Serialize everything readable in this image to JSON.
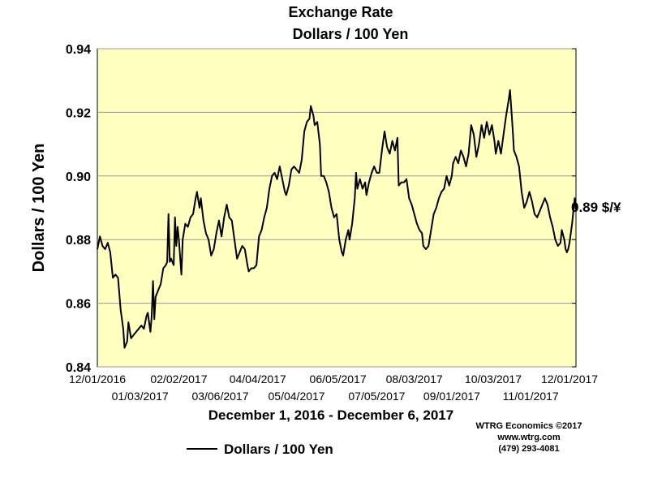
{
  "chart_data": {
    "type": "line",
    "title": "Exchange Rate",
    "subtitle": "Dollars / 100 Yen",
    "ylabel": "Dollars / 100 Yen",
    "xlabel": "December 1, 2016 - December 6, 2017",
    "ylim": [
      0.84,
      0.94
    ],
    "yticks": [
      "0.94",
      "0.92",
      "0.90",
      "0.88",
      "0.86",
      "0.84"
    ],
    "ytick_values": [
      0.94,
      0.92,
      0.9,
      0.88,
      0.86,
      0.84
    ],
    "xlim": [
      "2016-12-01",
      "2017-12-06"
    ],
    "xticks_upper": [
      {
        "date": "2016-12-01",
        "label": "12/01/2016"
      },
      {
        "date": "2017-02-02",
        "label": "02/02/2017"
      },
      {
        "date": "2017-04-04",
        "label": "04/04/2017"
      },
      {
        "date": "2017-06-05",
        "label": "06/05/2017"
      },
      {
        "date": "2017-08-03",
        "label": "08/03/2017"
      },
      {
        "date": "2017-10-03",
        "label": "10/03/2017"
      },
      {
        "date": "2017-12-01",
        "label": "12/01/2017"
      }
    ],
    "xticks_lower": [
      {
        "date": "2017-01-03",
        "label": "01/03/2017"
      },
      {
        "date": "2017-03-06",
        "label": "03/06/2017"
      },
      {
        "date": "2017-05-04",
        "label": "05/04/2017"
      },
      {
        "date": "2017-07-05",
        "label": "07/05/2017"
      },
      {
        "date": "2017-09-01",
        "label": "09/01/2017"
      },
      {
        "date": "2017-11-01",
        "label": "11/01/2017"
      }
    ],
    "grid": "horizontal",
    "background_color": "#ffffc0",
    "line_color": "#000000",
    "series": [
      {
        "name": "Dollars / 100 Yen",
        "points": [
          [
            "2016-12-01",
            0.877
          ],
          [
            "2016-12-02",
            0.879
          ],
          [
            "2016-12-03",
            0.881
          ],
          [
            "2016-12-05",
            0.878
          ],
          [
            "2016-12-07",
            0.877
          ],
          [
            "2016-12-09",
            0.879
          ],
          [
            "2016-12-11",
            0.876
          ],
          [
            "2016-12-13",
            0.868
          ],
          [
            "2016-12-15",
            0.869
          ],
          [
            "2016-12-17",
            0.868
          ],
          [
            "2016-12-19",
            0.858
          ],
          [
            "2016-12-21",
            0.852
          ],
          [
            "2016-12-22",
            0.846
          ],
          [
            "2016-12-24",
            0.848
          ],
          [
            "2016-12-25",
            0.854
          ],
          [
            "2016-12-27",
            0.849
          ],
          [
            "2016-12-29",
            0.85
          ],
          [
            "2016-12-31",
            0.851
          ],
          [
            "2017-01-02",
            0.852
          ],
          [
            "2017-01-04",
            0.853
          ],
          [
            "2017-01-06",
            0.852
          ],
          [
            "2017-01-08",
            0.856
          ],
          [
            "2017-01-09",
            0.857
          ],
          [
            "2017-01-11",
            0.851
          ],
          [
            "2017-01-12",
            0.856
          ],
          [
            "2017-01-13",
            0.867
          ],
          [
            "2017-01-14",
            0.855
          ],
          [
            "2017-01-15",
            0.862
          ],
          [
            "2017-01-17",
            0.864
          ],
          [
            "2017-01-19",
            0.866
          ],
          [
            "2017-01-21",
            0.871
          ],
          [
            "2017-01-23",
            0.872
          ],
          [
            "2017-01-24",
            0.873
          ],
          [
            "2017-01-25",
            0.888
          ],
          [
            "2017-01-26",
            0.873
          ],
          [
            "2017-01-27",
            0.874
          ],
          [
            "2017-01-29",
            0.872
          ],
          [
            "2017-01-30",
            0.887
          ],
          [
            "2017-01-31",
            0.878
          ],
          [
            "2017-02-01",
            0.884
          ],
          [
            "2017-02-02",
            0.88
          ],
          [
            "2017-02-04",
            0.869
          ],
          [
            "2017-02-05",
            0.88
          ],
          [
            "2017-02-07",
            0.885
          ],
          [
            "2017-02-09",
            0.884
          ],
          [
            "2017-02-11",
            0.887
          ],
          [
            "2017-02-13",
            0.888
          ],
          [
            "2017-02-15",
            0.893
          ],
          [
            "2017-02-16",
            0.895
          ],
          [
            "2017-02-18",
            0.89
          ],
          [
            "2017-02-19",
            0.893
          ],
          [
            "2017-02-21",
            0.886
          ],
          [
            "2017-02-23",
            0.882
          ],
          [
            "2017-02-25",
            0.88
          ],
          [
            "2017-02-27",
            0.875
          ],
          [
            "2017-03-01",
            0.877
          ],
          [
            "2017-03-03",
            0.882
          ],
          [
            "2017-03-05",
            0.886
          ],
          [
            "2017-03-07",
            0.881
          ],
          [
            "2017-03-09",
            0.887
          ],
          [
            "2017-03-11",
            0.891
          ],
          [
            "2017-03-13",
            0.887
          ],
          [
            "2017-03-15",
            0.886
          ],
          [
            "2017-03-17",
            0.88
          ],
          [
            "2017-03-19",
            0.874
          ],
          [
            "2017-03-21",
            0.876
          ],
          [
            "2017-03-23",
            0.878
          ],
          [
            "2017-03-25",
            0.877
          ],
          [
            "2017-03-27",
            0.872
          ],
          [
            "2017-03-28",
            0.87
          ],
          [
            "2017-03-30",
            0.871
          ],
          [
            "2017-04-01",
            0.871
          ],
          [
            "2017-04-03",
            0.872
          ],
          [
            "2017-04-05",
            0.881
          ],
          [
            "2017-04-07",
            0.883
          ],
          [
            "2017-04-09",
            0.887
          ],
          [
            "2017-04-11",
            0.89
          ],
          [
            "2017-04-13",
            0.896
          ],
          [
            "2017-04-15",
            0.9
          ],
          [
            "2017-04-17",
            0.901
          ],
          [
            "2017-04-19",
            0.899
          ],
          [
            "2017-04-21",
            0.903
          ],
          [
            "2017-04-23",
            0.899
          ],
          [
            "2017-04-25",
            0.895
          ],
          [
            "2017-04-26",
            0.894
          ],
          [
            "2017-04-28",
            0.897
          ],
          [
            "2017-04-30",
            0.902
          ],
          [
            "2017-05-02",
            0.903
          ],
          [
            "2017-05-04",
            0.902
          ],
          [
            "2017-05-06",
            0.901
          ],
          [
            "2017-05-08",
            0.905
          ],
          [
            "2017-05-10",
            0.914
          ],
          [
            "2017-05-12",
            0.917
          ],
          [
            "2017-05-14",
            0.918
          ],
          [
            "2017-05-15",
            0.922
          ],
          [
            "2017-05-17",
            0.919
          ],
          [
            "2017-05-18",
            0.916
          ],
          [
            "2017-05-20",
            0.917
          ],
          [
            "2017-05-22",
            0.91
          ],
          [
            "2017-05-23",
            0.9
          ],
          [
            "2017-05-25",
            0.9
          ],
          [
            "2017-05-27",
            0.898
          ],
          [
            "2017-05-29",
            0.895
          ],
          [
            "2017-05-31",
            0.89
          ],
          [
            "2017-06-02",
            0.887
          ],
          [
            "2017-06-04",
            0.888
          ],
          [
            "2017-06-06",
            0.88
          ],
          [
            "2017-06-08",
            0.876
          ],
          [
            "2017-06-09",
            0.875
          ],
          [
            "2017-06-11",
            0.88
          ],
          [
            "2017-06-13",
            0.883
          ],
          [
            "2017-06-14",
            0.88
          ],
          [
            "2017-06-16",
            0.885
          ],
          [
            "2017-06-18",
            0.893
          ],
          [
            "2017-06-19",
            0.901
          ],
          [
            "2017-06-20",
            0.896
          ],
          [
            "2017-06-22",
            0.899
          ],
          [
            "2017-06-24",
            0.896
          ],
          [
            "2017-06-26",
            0.898
          ],
          [
            "2017-06-27",
            0.894
          ],
          [
            "2017-06-29",
            0.898
          ],
          [
            "2017-07-01",
            0.901
          ],
          [
            "2017-07-03",
            0.903
          ],
          [
            "2017-07-05",
            0.901
          ],
          [
            "2017-07-07",
            0.901
          ],
          [
            "2017-07-09",
            0.908
          ],
          [
            "2017-07-11",
            0.914
          ],
          [
            "2017-07-13",
            0.909
          ],
          [
            "2017-07-15",
            0.907
          ],
          [
            "2017-07-17",
            0.911
          ],
          [
            "2017-07-19",
            0.908
          ],
          [
            "2017-07-21",
            0.912
          ],
          [
            "2017-07-22",
            0.897
          ],
          [
            "2017-07-24",
            0.898
          ],
          [
            "2017-07-26",
            0.898
          ],
          [
            "2017-07-28",
            0.899
          ],
          [
            "2017-07-30",
            0.893
          ],
          [
            "2017-08-01",
            0.891
          ],
          [
            "2017-08-03",
            0.888
          ],
          [
            "2017-08-05",
            0.885
          ],
          [
            "2017-08-07",
            0.883
          ],
          [
            "2017-08-09",
            0.882
          ],
          [
            "2017-08-10",
            0.878
          ],
          [
            "2017-08-12",
            0.877
          ],
          [
            "2017-08-14",
            0.878
          ],
          [
            "2017-08-16",
            0.883
          ],
          [
            "2017-08-18",
            0.888
          ],
          [
            "2017-08-20",
            0.89
          ],
          [
            "2017-08-22",
            0.893
          ],
          [
            "2017-08-24",
            0.895
          ],
          [
            "2017-08-26",
            0.896
          ],
          [
            "2017-08-28",
            0.9
          ],
          [
            "2017-08-30",
            0.897
          ],
          [
            "2017-09-01",
            0.9
          ],
          [
            "2017-09-02",
            0.904
          ],
          [
            "2017-09-04",
            0.906
          ],
          [
            "2017-09-06",
            0.904
          ],
          [
            "2017-09-08",
            0.908
          ],
          [
            "2017-09-10",
            0.906
          ],
          [
            "2017-09-12",
            0.903
          ],
          [
            "2017-09-14",
            0.907
          ],
          [
            "2017-09-16",
            0.916
          ],
          [
            "2017-09-18",
            0.913
          ],
          [
            "2017-09-20",
            0.906
          ],
          [
            "2017-09-22",
            0.91
          ],
          [
            "2017-09-24",
            0.916
          ],
          [
            "2017-09-26",
            0.912
          ],
          [
            "2017-09-28",
            0.917
          ],
          [
            "2017-09-30",
            0.913
          ],
          [
            "2017-10-02",
            0.916
          ],
          [
            "2017-10-04",
            0.911
          ],
          [
            "2017-10-05",
            0.907
          ],
          [
            "2017-10-07",
            0.911
          ],
          [
            "2017-10-09",
            0.907
          ],
          [
            "2017-10-11",
            0.913
          ],
          [
            "2017-10-13",
            0.919
          ],
          [
            "2017-10-15",
            0.924
          ],
          [
            "2017-10-16",
            0.927
          ],
          [
            "2017-10-18",
            0.915
          ],
          [
            "2017-10-19",
            0.908
          ],
          [
            "2017-10-21",
            0.906
          ],
          [
            "2017-10-23",
            0.903
          ],
          [
            "2017-10-25",
            0.895
          ],
          [
            "2017-10-27",
            0.89
          ],
          [
            "2017-10-29",
            0.892
          ],
          [
            "2017-10-31",
            0.895
          ],
          [
            "2017-11-02",
            0.892
          ],
          [
            "2017-11-04",
            0.888
          ],
          [
            "2017-11-06",
            0.887
          ],
          [
            "2017-11-08",
            0.889
          ],
          [
            "2017-11-10",
            0.891
          ],
          [
            "2017-11-12",
            0.893
          ],
          [
            "2017-11-14",
            0.891
          ],
          [
            "2017-11-16",
            0.887
          ],
          [
            "2017-11-18",
            0.884
          ],
          [
            "2017-11-20",
            0.88
          ],
          [
            "2017-11-22",
            0.878
          ],
          [
            "2017-11-24",
            0.879
          ],
          [
            "2017-11-25",
            0.883
          ],
          [
            "2017-11-27",
            0.88
          ],
          [
            "2017-11-28",
            0.877
          ],
          [
            "2017-11-29",
            0.876
          ],
          [
            "2017-11-30",
            0.877
          ],
          [
            "2017-12-01",
            0.879
          ],
          [
            "2017-12-02",
            0.882
          ],
          [
            "2017-12-03",
            0.885
          ],
          [
            "2017-12-04",
            0.889
          ],
          [
            "2017-12-05",
            0.893
          ],
          [
            "2017-12-06",
            0.889
          ]
        ]
      }
    ],
    "end_label": "0.89 $/¥",
    "legend": {
      "label": "Dollars / 100 Yen",
      "placement": "bottom-left"
    }
  },
  "credit": {
    "line1": "WTRG Economics  ©2017",
    "line2": "www.wtrg.com",
    "line3": "(479) 293-4081"
  }
}
